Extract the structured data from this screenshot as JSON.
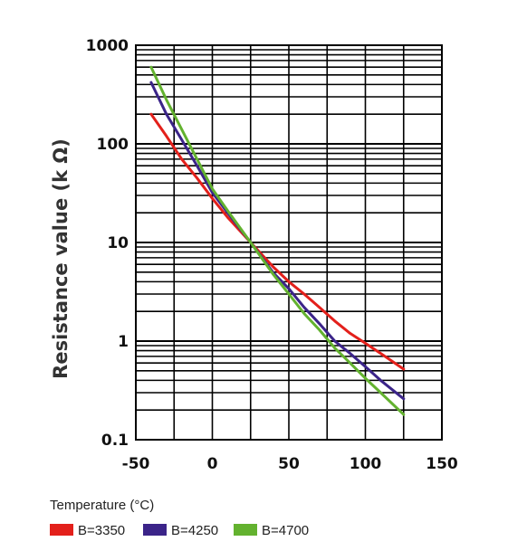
{
  "chart_data": {
    "type": "line",
    "title": "",
    "xlabel": "Temperature (°C)",
    "ylabel": "Resistance value (k Ω)",
    "xlim": [
      -50,
      150
    ],
    "ylim": [
      0.1,
      1000
    ],
    "y_scale": "log",
    "grid": true,
    "legend_position": "bottom-left",
    "x_ticks": [
      -50,
      0,
      50,
      100,
      150
    ],
    "x_tick_labels": [
      "-50",
      "0",
      "50",
      "100",
      "150"
    ],
    "y_ticks": [
      0.1,
      1,
      10,
      100,
      1000
    ],
    "y_tick_labels": [
      "0.1",
      "1",
      "10",
      "100",
      "1000"
    ],
    "series": [
      {
        "name": "B=3350",
        "color": "#e3201b",
        "x": [
          -40,
          -30,
          -20,
          -10,
          0,
          10,
          25,
          40,
          50,
          60,
          70,
          80,
          90,
          100,
          110,
          125
        ],
        "y": [
          200,
          120,
          70,
          45,
          28,
          18,
          10,
          5.6,
          4.0,
          3.0,
          2.2,
          1.6,
          1.2,
          0.95,
          0.75,
          0.52
        ]
      },
      {
        "name": "B=4250",
        "color": "#3b2489",
        "x": [
          -40,
          -30,
          -20,
          -10,
          0,
          10,
          25,
          40,
          50,
          60,
          70,
          80,
          90,
          100,
          110,
          125
        ],
        "y": [
          420,
          200,
          110,
          60,
          32,
          20,
          10,
          4.9,
          3.4,
          2.2,
          1.5,
          1.0,
          0.75,
          0.55,
          0.4,
          0.26
        ]
      },
      {
        "name": "B=4700",
        "color": "#63b22f",
        "x": [
          -40,
          -30,
          -20,
          -10,
          0,
          10,
          25,
          40,
          50,
          60,
          70,
          80,
          90,
          100,
          110,
          125
        ],
        "y": [
          600,
          280,
          140,
          70,
          35,
          21,
          10,
          4.7,
          3.0,
          1.9,
          1.3,
          0.85,
          0.6,
          0.42,
          0.3,
          0.18
        ]
      }
    ]
  }
}
